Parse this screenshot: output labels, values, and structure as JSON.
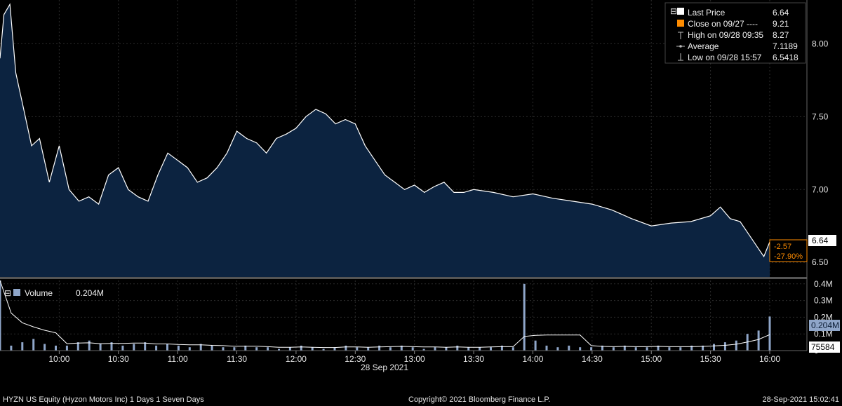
{
  "colors": {
    "background": "#000000",
    "price_line": "#ffffff",
    "price_fill": "#0c2340",
    "volume_bar": "#8fa6c9",
    "volume_avg": "#ffffff",
    "close_marker": "#ff8c00",
    "grid": "#2b2b2b"
  },
  "legend_price": {
    "items": [
      {
        "label": "Last Price",
        "value": "6.64",
        "icon": "white-square-icon"
      },
      {
        "label": "Close on 09/27 ----",
        "value": "9.21",
        "icon": "orange-square-icon"
      },
      {
        "label": "High on 09/28 09:35",
        "value": "8.27",
        "icon": "high-marker-icon"
      },
      {
        "label": "Average",
        "value": "7.1189",
        "icon": "average-line-icon"
      },
      {
        "label": "Low on 09/28 15:57",
        "value": "6.5418",
        "icon": "low-marker-icon"
      }
    ]
  },
  "legend_volume": {
    "label": "Volume",
    "value": "0.204M",
    "icon": "volume-square-icon"
  },
  "price_tags": {
    "last": "6.64",
    "change": "-2.57",
    "change_pct": "-27.90%"
  },
  "volume_tags": {
    "last": "0.204M",
    "average": "75584"
  },
  "date_label": "28 Sep 2021",
  "footer": {
    "left": "HYZN US Equity (Hyzon Motors Inc) 1 Days 1 Seven Days",
    "center": "Copyright© 2021 Bloomberg Finance L.P.",
    "right": "28-Sep-2021 15:02:41"
  },
  "chart_data": [
    {
      "type": "area",
      "series": [
        {
          "name": "Last Price"
        }
      ],
      "x_tick_labels": [
        "10:00",
        "10:30",
        "11:00",
        "11:30",
        "12:00",
        "12:30",
        "13:00",
        "13:30",
        "14:00",
        "14:30",
        "15:00",
        "15:30",
        "16:00"
      ],
      "y_tick_labels": [
        "6.50",
        "7.00",
        "7.50",
        "8.00"
      ],
      "ylim": [
        6.4,
        8.3
      ],
      "grid": true,
      "time": [
        "09:30",
        "09:32",
        "09:35",
        "09:38",
        "09:42",
        "09:46",
        "09:50",
        "09:55",
        "10:00",
        "10:05",
        "10:10",
        "10:15",
        "10:20",
        "10:25",
        "10:30",
        "10:35",
        "10:40",
        "10:45",
        "10:50",
        "10:55",
        "11:00",
        "11:05",
        "11:10",
        "11:15",
        "11:20",
        "11:25",
        "11:30",
        "11:35",
        "11:40",
        "11:45",
        "11:50",
        "11:55",
        "12:00",
        "12:05",
        "12:10",
        "12:15",
        "12:20",
        "12:25",
        "12:30",
        "12:35",
        "12:40",
        "12:45",
        "12:50",
        "12:55",
        "13:00",
        "13:05",
        "13:10",
        "13:15",
        "13:20",
        "13:25",
        "13:30",
        "13:40",
        "13:50",
        "14:00",
        "14:10",
        "14:20",
        "14:30",
        "14:40",
        "14:50",
        "15:00",
        "15:10",
        "15:20",
        "15:30",
        "15:35",
        "15:40",
        "15:45",
        "15:50",
        "15:55",
        "15:57",
        "16:00"
      ],
      "price": [
        7.9,
        8.2,
        8.27,
        7.8,
        7.55,
        7.3,
        7.35,
        7.05,
        7.3,
        7.0,
        6.92,
        6.95,
        6.9,
        7.1,
        7.15,
        7.0,
        6.95,
        6.92,
        7.1,
        7.25,
        7.2,
        7.15,
        7.05,
        7.08,
        7.15,
        7.25,
        7.4,
        7.35,
        7.32,
        7.25,
        7.35,
        7.38,
        7.42,
        7.5,
        7.55,
        7.52,
        7.45,
        7.48,
        7.45,
        7.3,
        7.2,
        7.1,
        7.05,
        7.0,
        7.03,
        6.98,
        7.02,
        7.05,
        6.98,
        6.98,
        7.0,
        6.98,
        6.95,
        6.97,
        6.94,
        6.92,
        6.9,
        6.86,
        6.8,
        6.75,
        6.77,
        6.78,
        6.82,
        6.88,
        6.8,
        6.78,
        6.68,
        6.58,
        6.54,
        6.64
      ]
    },
    {
      "type": "bar",
      "series": [
        {
          "name": "Volume"
        }
      ],
      "y_tick_labels": [
        "0",
        "0.1M",
        "0.2M",
        "0.3M",
        "0.4M"
      ],
      "ylim": [
        0,
        0.42
      ],
      "volume_M": [
        0.42,
        0.03,
        0.05,
        0.07,
        0.04,
        0.03,
        0.03,
        0.05,
        0.06,
        0.04,
        0.05,
        0.03,
        0.04,
        0.05,
        0.03,
        0.04,
        0.03,
        0.02,
        0.04,
        0.03,
        0.02,
        0.02,
        0.03,
        0.02,
        0.02,
        0.01,
        0.02,
        0.03,
        0.02,
        0.01,
        0.02,
        0.03,
        0.02,
        0.02,
        0.03,
        0.02,
        0.03,
        0.02,
        0.01,
        0.02,
        0.02,
        0.03,
        0.02,
        0.02,
        0.02,
        0.03,
        0.02,
        0.4,
        0.06,
        0.03,
        0.02,
        0.03,
        0.02,
        0.02,
        0.03,
        0.02,
        0.03,
        0.02,
        0.02,
        0.03,
        0.02,
        0.02,
        0.03,
        0.03,
        0.04,
        0.05,
        0.06,
        0.1,
        0.12,
        0.204
      ],
      "avg_label": "75584"
    }
  ]
}
